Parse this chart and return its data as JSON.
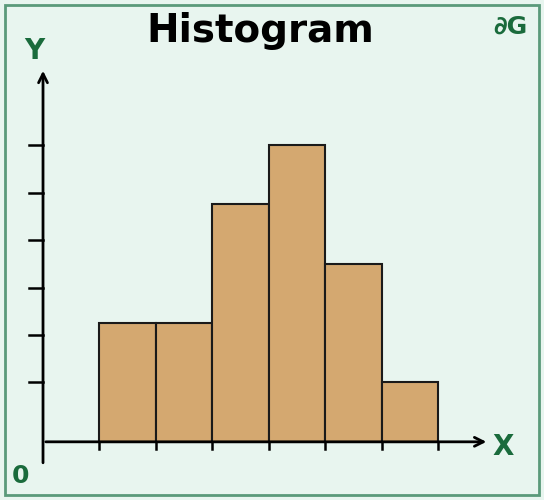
{
  "title": "Histogram",
  "title_fontsize": 28,
  "title_fontweight": "bold",
  "bar_heights": [
    2,
    2,
    4,
    5,
    3,
    1
  ],
  "bar_color": "#D4A870",
  "bar_edgecolor": "#1a1a1a",
  "bar_linewidth": 1.5,
  "background_color": "#E8F5EF",
  "axis_color": "#000000",
  "xlabel": "X",
  "ylabel": "Y",
  "xlabel_color": "#1a6b3c",
  "ylabel_color": "#1a6b3c",
  "zero_label_color": "#1a6b3c",
  "axis_label_fontsize": 20,
  "zero_fontsize": 18,
  "ytick_count": 6,
  "border_color": "#5a9a7a",
  "border_linewidth": 2.0,
  "logo_color": "#1a6b3c",
  "logo_fontsize": 18
}
